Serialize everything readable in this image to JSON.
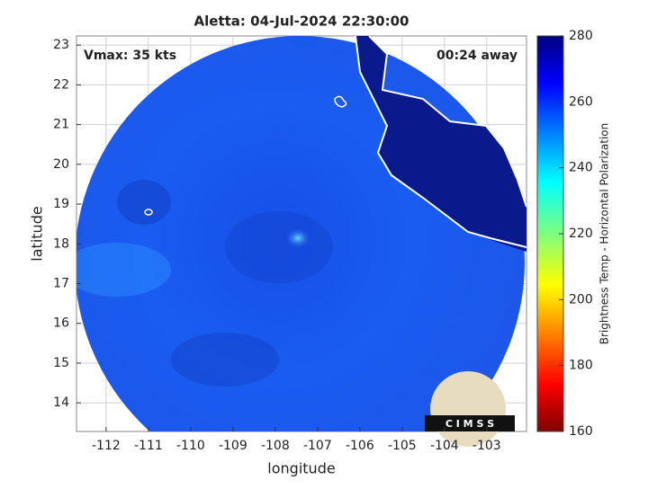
{
  "chart_data": {
    "type": "map",
    "title": "Aletta: 04-Jul-2024 22:30:00",
    "annotations": [
      "Vmax: 35 kts",
      "00:24 away"
    ],
    "xlabel": "longitude",
    "ylabel": "latitude",
    "xlim": [
      -112.7,
      -102.06
    ],
    "ylim": [
      13.28,
      23.23
    ],
    "xticks": [
      -112,
      -111,
      -110,
      -109,
      -108,
      -107,
      -106,
      -105,
      -104,
      -103
    ],
    "yticks": [
      14,
      15,
      16,
      17,
      18,
      19,
      20,
      21,
      22,
      23
    ],
    "grid": true,
    "colorbar": {
      "label": "Brightness Temp - Horizontal Polarization",
      "lim": [
        160,
        280
      ],
      "ticks": [
        160,
        180,
        200,
        220,
        240,
        260,
        280
      ]
    },
    "logo_text": "C I M S S"
  }
}
